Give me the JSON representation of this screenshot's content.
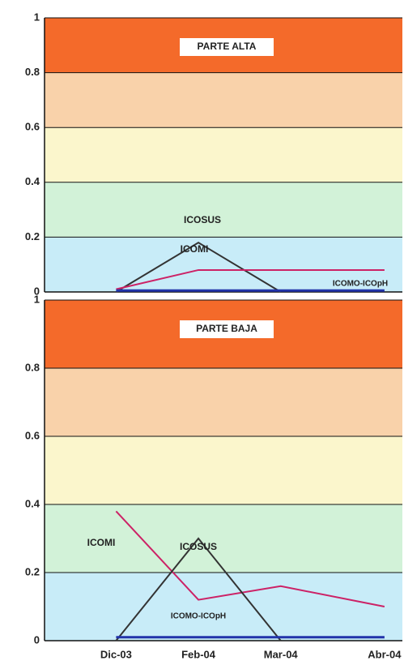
{
  "chart_data": [
    {
      "type": "line",
      "title": "PARTE ALTA",
      "categories": [
        "Dic-03",
        "Feb-04",
        "Mar-04",
        "Abr-04"
      ],
      "series": [
        {
          "name": "ICOSUS",
          "color": "#333333",
          "values": [
            0,
            0.18,
            0,
            null
          ]
        },
        {
          "name": "ICOMI",
          "color": "#cc2266",
          "values": [
            0.01,
            0.08,
            0.08,
            0.08
          ]
        },
        {
          "name": "ICOMO-ICOpH",
          "color": "#2233aa",
          "values": [
            0.005,
            0.005,
            0.005,
            0.005
          ]
        }
      ],
      "ylim": [
        0,
        1
      ],
      "yticks": [
        0,
        0.2,
        0.4,
        0.6,
        0.8,
        1
      ],
      "grid": true,
      "band_colors": [
        "#c8ecf8",
        "#d2f2d8",
        "#fbf6cc",
        "#f9d2aa",
        "#f46a2a"
      ]
    },
    {
      "type": "line",
      "title": "PARTE BAJA",
      "categories": [
        "Dic-03",
        "Feb-04",
        "Mar-04",
        "Abr-04"
      ],
      "series": [
        {
          "name": "ICOMI",
          "color": "#cc2266",
          "values": [
            0.38,
            0.12,
            0.16,
            0.1
          ]
        },
        {
          "name": "ICOSUS",
          "color": "#333333",
          "values": [
            0,
            0.3,
            0,
            null
          ]
        },
        {
          "name": "ICOMO-ICOpH",
          "color": "#2233aa",
          "values": [
            0.01,
            0.01,
            0.01,
            0.01
          ]
        }
      ],
      "ylim": [
        0,
        1
      ],
      "yticks": [
        0,
        0.2,
        0.4,
        0.6,
        0.8,
        1
      ],
      "grid": true,
      "band_colors": [
        "#c8ecf8",
        "#d2f2d8",
        "#fbf6cc",
        "#f9d2aa",
        "#f46a2a"
      ]
    }
  ]
}
